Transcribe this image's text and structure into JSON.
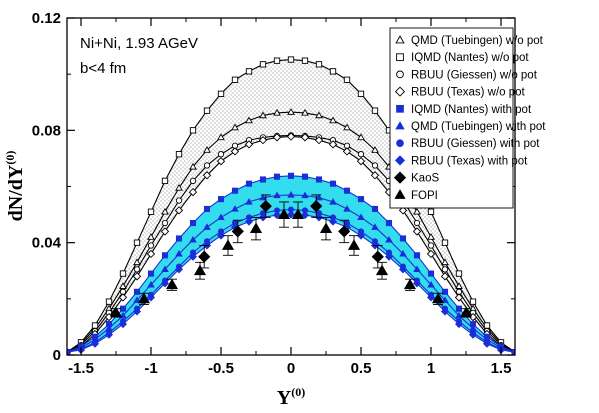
{
  "chart_data": {
    "type": "line",
    "xlabel": "Y",
    "xlabel_sup": "(0)",
    "ylabel": "dN/dY",
    "ylabel_sup": "(0)",
    "xlim": [
      -1.6,
      1.6
    ],
    "ylim": [
      0,
      0.12
    ],
    "xticks": [
      -1.5,
      -1,
      -0.5,
      0,
      0.5,
      1,
      1.5
    ],
    "xtick_labels": [
      "-1.5",
      "-1",
      "-0.5",
      "0",
      "0.5",
      "1",
      "1.5"
    ],
    "yticks": [
      0,
      0.04,
      0.08,
      0.12
    ],
    "ytick_labels": [
      "0",
      "0.04",
      "0.08",
      "0.12"
    ],
    "grid": false,
    "legend_position": "top-right",
    "annotations": [
      "Ni+Ni, 1.93 AGeV",
      "b<4 fm"
    ],
    "shaded_bands": [
      {
        "between": [
          "IQMD (Nantes) w/o pot",
          "RBUU (Texas) w/o pot"
        ],
        "fill": "dotted-grey"
      },
      {
        "between": [
          "IQMD (Nantes) with pot",
          "RBUU (Texas) with pot"
        ],
        "fill": "#33ddee"
      }
    ],
    "series": [
      {
        "name": "QMD (Tuebingen) w/o pot",
        "marker": "triangle-open",
        "color": "#000000",
        "x": [
          -1.6,
          -1.5,
          -1.4,
          -1.3,
          -1.2,
          -1.1,
          -1.0,
          -0.9,
          -0.8,
          -0.7,
          -0.6,
          -0.5,
          -0.4,
          -0.3,
          -0.2,
          -0.1,
          0,
          0.1,
          0.2,
          0.3,
          0.4,
          0.5,
          0.6,
          0.7,
          0.8,
          0.9,
          1.0,
          1.1,
          1.2,
          1.3,
          1.4,
          1.5,
          1.6
        ],
        "y": [
          0.001,
          0.004,
          0.0095,
          0.0165,
          0.0245,
          0.033,
          0.042,
          0.051,
          0.0595,
          0.067,
          0.073,
          0.0775,
          0.081,
          0.0835,
          0.0853,
          0.0862,
          0.0865,
          0.0862,
          0.0853,
          0.0835,
          0.081,
          0.0775,
          0.073,
          0.067,
          0.0595,
          0.051,
          0.042,
          0.033,
          0.0245,
          0.0165,
          0.0095,
          0.004,
          0.001
        ]
      },
      {
        "name": "IQMD (Nantes) w/o pot",
        "marker": "square-open",
        "color": "#000000",
        "x": [
          -1.6,
          -1.5,
          -1.4,
          -1.3,
          -1.2,
          -1.1,
          -1.0,
          -0.9,
          -0.8,
          -0.7,
          -0.6,
          -0.5,
          -0.4,
          -0.3,
          -0.2,
          -0.1,
          0,
          0.1,
          0.2,
          0.3,
          0.4,
          0.5,
          0.6,
          0.7,
          0.8,
          0.9,
          1.0,
          1.1,
          1.2,
          1.3,
          1.4,
          1.5,
          1.6
        ],
        "y": [
          0.001,
          0.0045,
          0.0105,
          0.019,
          0.029,
          0.04,
          0.051,
          0.062,
          0.0715,
          0.08,
          0.087,
          0.093,
          0.098,
          0.101,
          0.1035,
          0.1048,
          0.1052,
          0.1048,
          0.1035,
          0.101,
          0.098,
          0.093,
          0.087,
          0.08,
          0.0715,
          0.062,
          0.051,
          0.04,
          0.029,
          0.019,
          0.0105,
          0.0045,
          0.001
        ]
      },
      {
        "name": "RBUU (Giessen) w/o pot",
        "marker": "circle-open",
        "color": "#000000",
        "x": [
          -1.6,
          -1.5,
          -1.4,
          -1.3,
          -1.2,
          -1.1,
          -1.0,
          -0.9,
          -0.8,
          -0.7,
          -0.6,
          -0.5,
          -0.4,
          -0.3,
          -0.2,
          -0.1,
          0,
          0.1,
          0.2,
          0.3,
          0.4,
          0.5,
          0.6,
          0.7,
          0.8,
          0.9,
          1.0,
          1.1,
          1.2,
          1.3,
          1.4,
          1.5,
          1.6
        ],
        "y": [
          0.001,
          0.0035,
          0.0085,
          0.015,
          0.0225,
          0.0305,
          0.039,
          0.047,
          0.055,
          0.062,
          0.0675,
          0.0715,
          0.0745,
          0.0765,
          0.0775,
          0.078,
          0.0782,
          0.078,
          0.0775,
          0.0765,
          0.0745,
          0.0715,
          0.0675,
          0.062,
          0.055,
          0.047,
          0.039,
          0.0305,
          0.0225,
          0.015,
          0.0085,
          0.0035,
          0.001
        ]
      },
      {
        "name": "RBUU (Texas) w/o pot",
        "marker": "diamond-open",
        "color": "#000000",
        "x": [
          -1.6,
          -1.5,
          -1.4,
          -1.3,
          -1.2,
          -1.1,
          -1.0,
          -0.9,
          -0.8,
          -0.7,
          -0.6,
          -0.5,
          -0.4,
          -0.3,
          -0.2,
          -0.1,
          0,
          0.1,
          0.2,
          0.3,
          0.4,
          0.5,
          0.6,
          0.7,
          0.8,
          0.9,
          1.0,
          1.1,
          1.2,
          1.3,
          1.4,
          1.5,
          1.6
        ],
        "y": [
          0.001,
          0.003,
          0.0075,
          0.0135,
          0.0205,
          0.028,
          0.036,
          0.044,
          0.0515,
          0.058,
          0.064,
          0.069,
          0.0725,
          0.075,
          0.0765,
          0.0775,
          0.0778,
          0.0775,
          0.0765,
          0.075,
          0.0725,
          0.069,
          0.064,
          0.058,
          0.0515,
          0.044,
          0.036,
          0.028,
          0.0205,
          0.0135,
          0.0075,
          0.003,
          0.001
        ]
      },
      {
        "name": "IQMD (Nantes) with pot",
        "marker": "square-filled",
        "color": "#1a2fd6",
        "x": [
          -1.6,
          -1.5,
          -1.4,
          -1.3,
          -1.2,
          -1.1,
          -1.0,
          -0.9,
          -0.8,
          -0.7,
          -0.6,
          -0.5,
          -0.4,
          -0.3,
          -0.2,
          -0.1,
          0,
          0.1,
          0.2,
          0.3,
          0.4,
          0.5,
          0.6,
          0.7,
          0.8,
          0.9,
          1.0,
          1.1,
          1.2,
          1.3,
          1.4,
          1.5,
          1.6
        ],
        "y": [
          0.001,
          0.003,
          0.0065,
          0.011,
          0.0165,
          0.0225,
          0.029,
          0.0355,
          0.0415,
          0.047,
          0.052,
          0.0555,
          0.0585,
          0.061,
          0.0625,
          0.0635,
          0.0638,
          0.0635,
          0.0625,
          0.061,
          0.0585,
          0.0555,
          0.052,
          0.047,
          0.0415,
          0.0355,
          0.029,
          0.0225,
          0.0165,
          0.011,
          0.0065,
          0.003,
          0.001
        ]
      },
      {
        "name": "QMD (Tuebingen) with pot",
        "marker": "triangle-filled",
        "color": "#1a2fd6",
        "x": [
          -1.6,
          -1.5,
          -1.4,
          -1.3,
          -1.2,
          -1.1,
          -1.0,
          -0.9,
          -0.8,
          -0.7,
          -0.6,
          -0.5,
          -0.4,
          -0.3,
          -0.2,
          -0.1,
          0,
          0.1,
          0.2,
          0.3,
          0.4,
          0.5,
          0.6,
          0.7,
          0.8,
          0.9,
          1.0,
          1.1,
          1.2,
          1.3,
          1.4,
          1.5,
          1.6
        ],
        "y": [
          0.001,
          0.0025,
          0.0055,
          0.0095,
          0.014,
          0.0195,
          0.025,
          0.0305,
          0.036,
          0.041,
          0.0455,
          0.049,
          0.052,
          0.0545,
          0.056,
          0.0568,
          0.057,
          0.0568,
          0.056,
          0.0545,
          0.052,
          0.049,
          0.0455,
          0.041,
          0.036,
          0.0305,
          0.025,
          0.0195,
          0.014,
          0.0095,
          0.0055,
          0.0025,
          0.001
        ]
      },
      {
        "name": "RBUU (Giessen) with pot",
        "marker": "circle-filled",
        "color": "#1a2fd6",
        "x": [
          -1.6,
          -1.5,
          -1.4,
          -1.3,
          -1.2,
          -1.1,
          -1.0,
          -0.9,
          -0.8,
          -0.7,
          -0.6,
          -0.5,
          -0.4,
          -0.3,
          -0.2,
          -0.1,
          0,
          0.1,
          0.2,
          0.3,
          0.4,
          0.5,
          0.6,
          0.7,
          0.8,
          0.9,
          1.0,
          1.1,
          1.2,
          1.3,
          1.4,
          1.5,
          1.6
        ],
        "y": [
          0.001,
          0.002,
          0.0045,
          0.008,
          0.012,
          0.0165,
          0.0215,
          0.0265,
          0.0315,
          0.0365,
          0.0405,
          0.044,
          0.047,
          0.049,
          0.0505,
          0.0515,
          0.0518,
          0.0515,
          0.0505,
          0.049,
          0.047,
          0.044,
          0.0405,
          0.0365,
          0.0315,
          0.0265,
          0.0215,
          0.0165,
          0.012,
          0.008,
          0.0045,
          0.002,
          0.001
        ]
      },
      {
        "name": "RBUU (Texas) with pot",
        "marker": "diamond-filled",
        "color": "#1a2fd6",
        "x": [
          -1.6,
          -1.5,
          -1.4,
          -1.3,
          -1.2,
          -1.1,
          -1.0,
          -0.9,
          -0.8,
          -0.7,
          -0.6,
          -0.5,
          -0.4,
          -0.3,
          -0.2,
          -0.1,
          0,
          0.1,
          0.2,
          0.3,
          0.4,
          0.5,
          0.6,
          0.7,
          0.8,
          0.9,
          1.0,
          1.1,
          1.2,
          1.3,
          1.4,
          1.5,
          1.6
        ],
        "y": [
          0.001,
          0.0018,
          0.004,
          0.0072,
          0.011,
          0.0155,
          0.0205,
          0.0255,
          0.0305,
          0.035,
          0.039,
          0.0425,
          0.0455,
          0.0475,
          0.049,
          0.0498,
          0.05,
          0.0498,
          0.049,
          0.0475,
          0.0455,
          0.0425,
          0.039,
          0.035,
          0.0305,
          0.0255,
          0.0205,
          0.0155,
          0.011,
          0.0072,
          0.004,
          0.0018,
          0.001
        ]
      },
      {
        "name": "KaoS",
        "marker": "diamond-black",
        "color": "#000000",
        "x": [
          -0.62,
          -0.38,
          -0.18,
          0.18,
          0.38,
          0.62
        ],
        "y": [
          0.035,
          0.044,
          0.053,
          0.053,
          0.044,
          0.035
        ],
        "err": [
          0.004,
          0.004,
          0.004,
          0.004,
          0.004,
          0.004
        ]
      },
      {
        "name": "FOPI",
        "marker": "triangle-black",
        "color": "#000000",
        "x": [
          -1.25,
          -1.05,
          -0.85,
          -0.65,
          -0.45,
          -0.25,
          -0.05,
          0.05,
          0.25,
          0.45,
          0.65,
          0.85,
          1.05,
          1.25
        ],
        "y": [
          0.015,
          0.02,
          0.025,
          0.03,
          0.039,
          0.045,
          0.05,
          0.05,
          0.045,
          0.039,
          0.03,
          0.025,
          0.02,
          0.015
        ],
        "err": [
          0.0015,
          0.002,
          0.002,
          0.003,
          0.0035,
          0.004,
          0.0045,
          0.0045,
          0.004,
          0.0035,
          0.003,
          0.002,
          0.002,
          0.0015
        ]
      }
    ]
  }
}
